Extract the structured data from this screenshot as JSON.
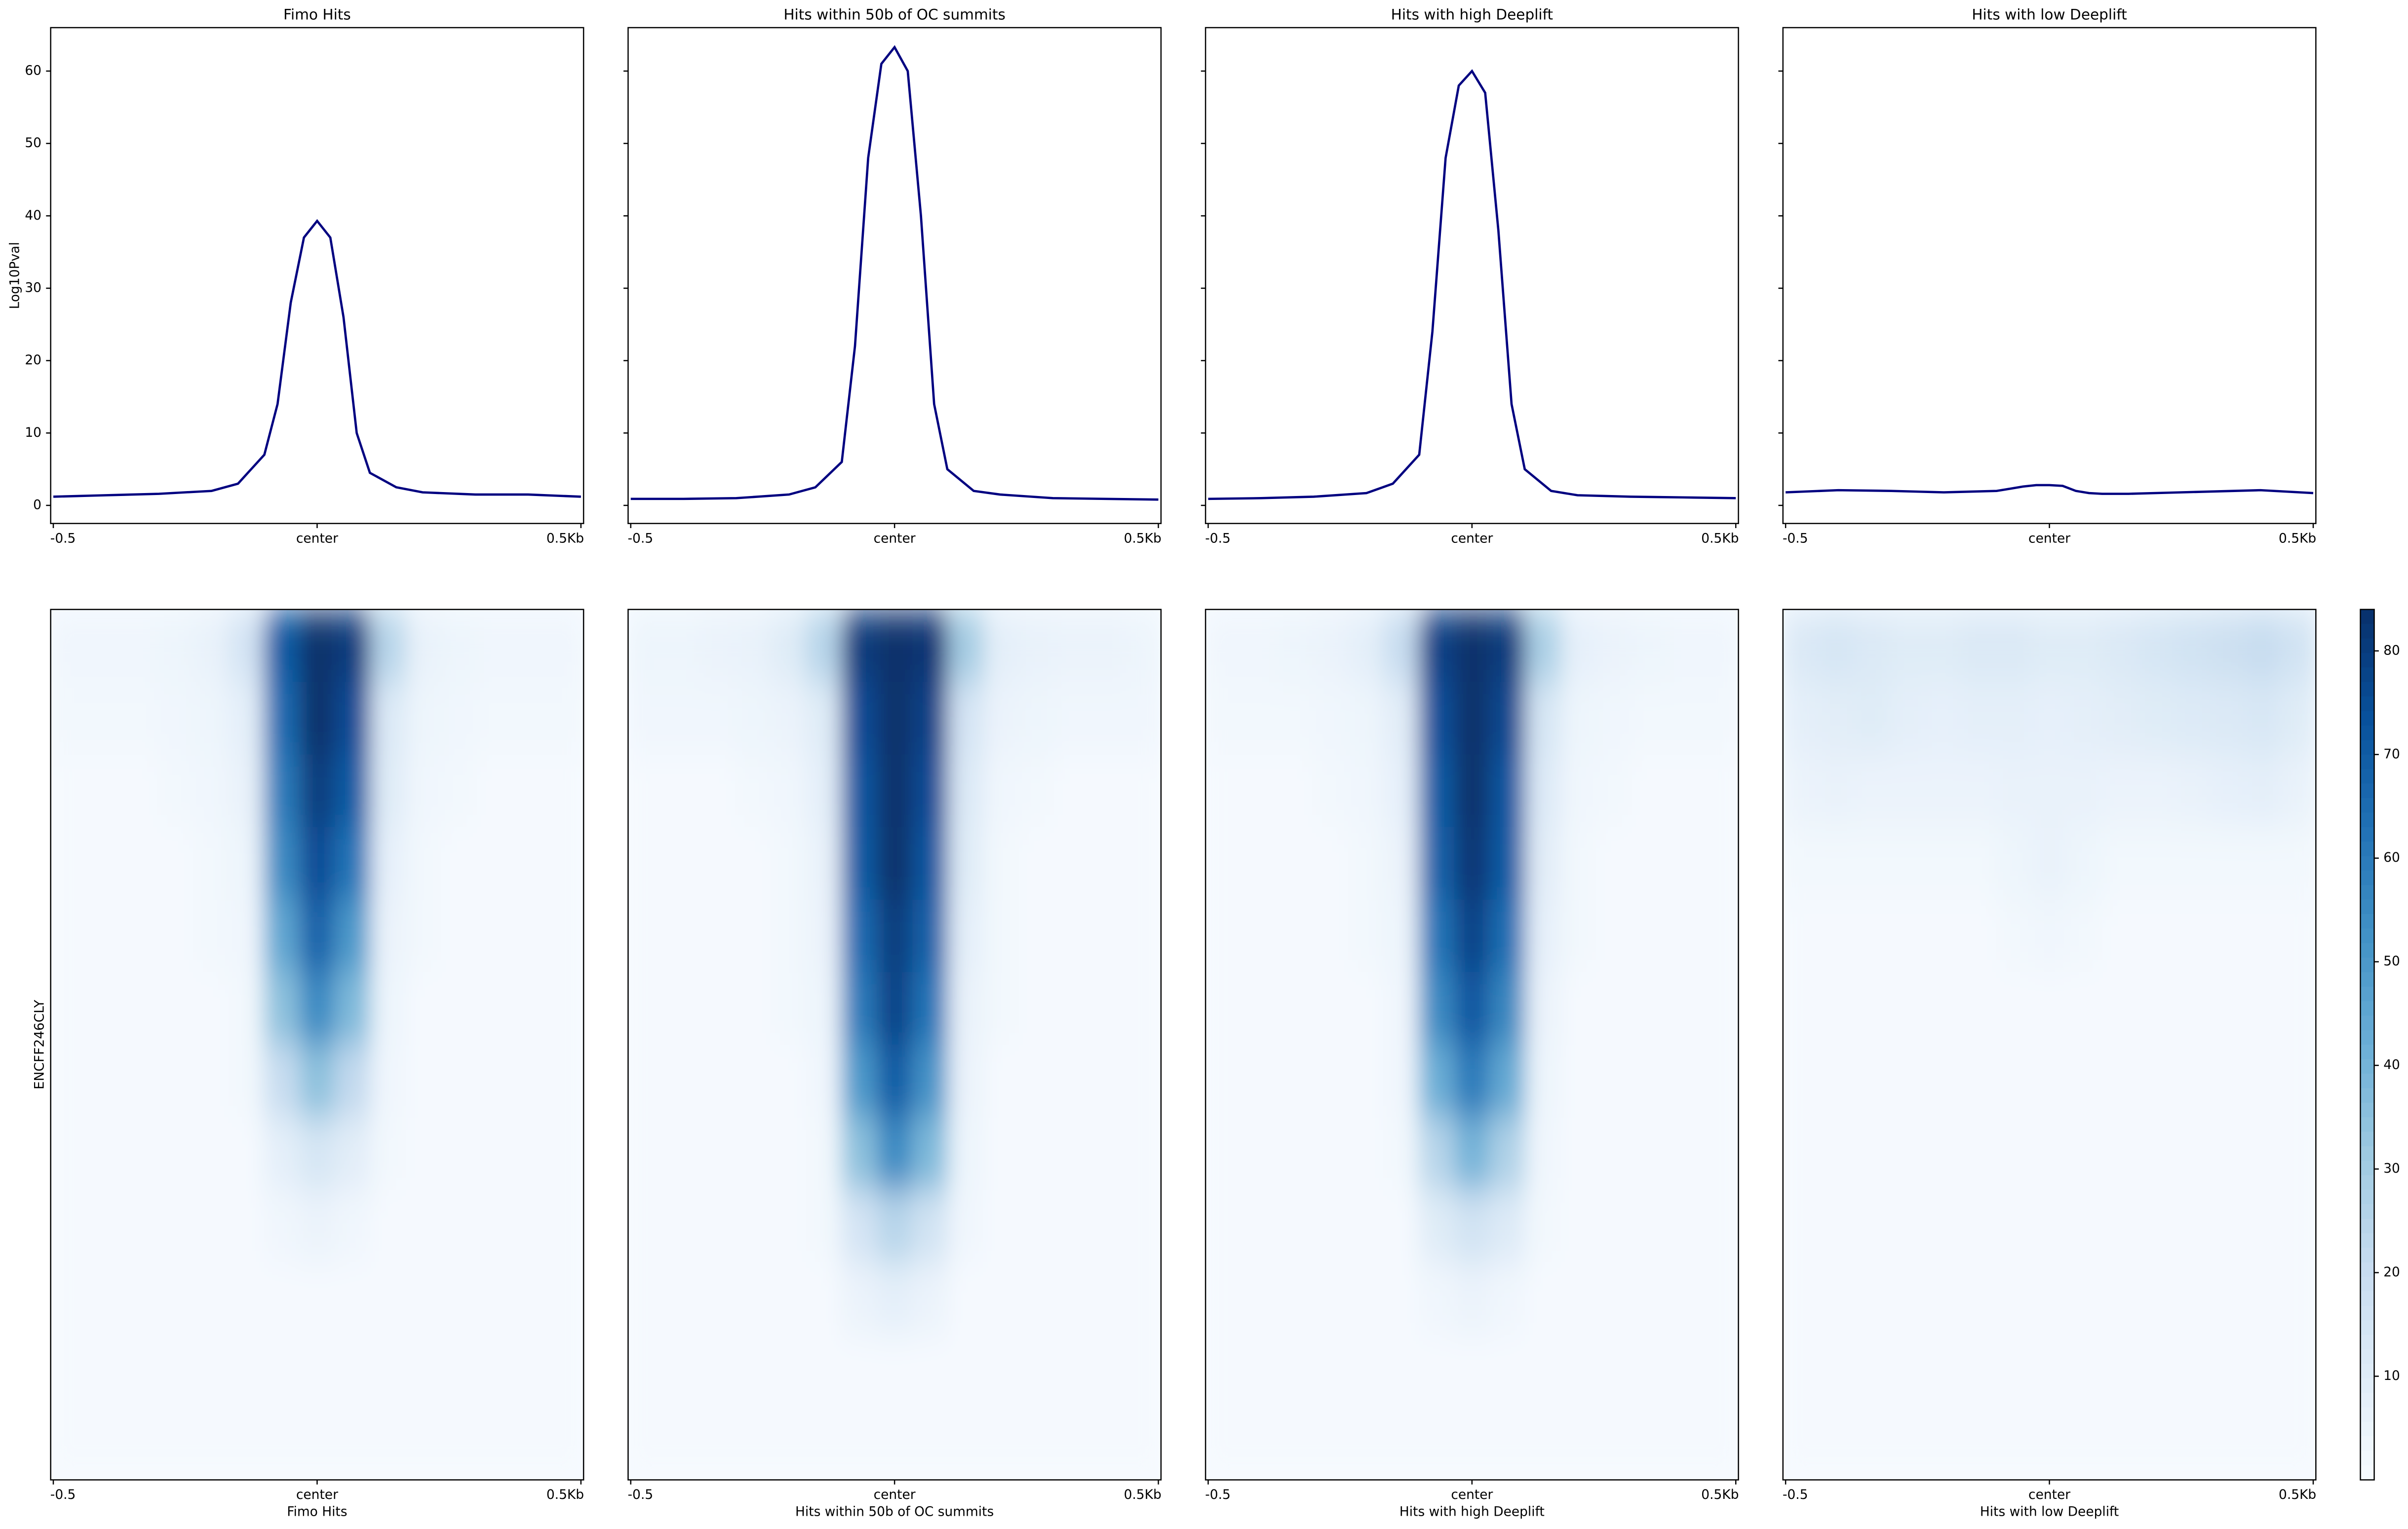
{
  "chart_data": [
    {
      "type": "line",
      "title": "Fimo Hits",
      "ylabel": "Log10Pval",
      "color": "#000080",
      "x": [
        -500,
        -400,
        -300,
        -200,
        -150,
        -100,
        -75,
        -50,
        -25,
        0,
        25,
        50,
        75,
        100,
        150,
        200,
        300,
        400,
        500
      ],
      "values": [
        1.2,
        1.4,
        1.6,
        2.0,
        3.0,
        7,
        14,
        28,
        37,
        39.3,
        37,
        26,
        10,
        4.5,
        2.5,
        1.8,
        1.5,
        1.5,
        1.2
      ],
      "xlim": [
        -505,
        505
      ],
      "xticks": [
        {
          "value": -500,
          "label": "-0.5"
        },
        {
          "value": 0,
          "label": "center"
        },
        {
          "value": 500,
          "label": "0.5Kb"
        }
      ],
      "ylim": [
        -2.5,
        66
      ],
      "yticks": [
        0,
        10,
        20,
        30,
        40,
        50,
        60
      ],
      "ytick_labels": true
    },
    {
      "type": "line",
      "title": "Hits within 50b of OC summits",
      "color": "#000080",
      "x": [
        -500,
        -400,
        -300,
        -200,
        -150,
        -100,
        -75,
        -50,
        -25,
        0,
        25,
        50,
        75,
        100,
        150,
        200,
        300,
        400,
        500
      ],
      "values": [
        0.9,
        0.9,
        1.0,
        1.5,
        2.5,
        6,
        22,
        48,
        61,
        63.3,
        60,
        40,
        14,
        5,
        2.0,
        1.5,
        1.0,
        0.9,
        0.8
      ],
      "xlim": [
        -505,
        505
      ],
      "xticks": [
        {
          "value": -500,
          "label": "-0.5"
        },
        {
          "value": 0,
          "label": "center"
        },
        {
          "value": 500,
          "label": "0.5Kb"
        }
      ],
      "ylim": [
        -2.5,
        66
      ],
      "yticks": [
        0,
        10,
        20,
        30,
        40,
        50,
        60
      ],
      "ytick_labels": false
    },
    {
      "type": "line",
      "title": "Hits with high Deeplift",
      "color": "#000080",
      "x": [
        -500,
        -400,
        -300,
        -200,
        -150,
        -100,
        -75,
        -50,
        -25,
        0,
        25,
        50,
        75,
        100,
        150,
        200,
        300,
        400,
        500
      ],
      "values": [
        0.9,
        1.0,
        1.2,
        1.7,
        3.0,
        7,
        24,
        48,
        58,
        60,
        57,
        38,
        14,
        5,
        2.0,
        1.4,
        1.2,
        1.1,
        1.0
      ],
      "xlim": [
        -505,
        505
      ],
      "xticks": [
        {
          "value": -500,
          "label": "-0.5"
        },
        {
          "value": 0,
          "label": "center"
        },
        {
          "value": 500,
          "label": "0.5Kb"
        }
      ],
      "ylim": [
        -2.5,
        66
      ],
      "yticks": [
        0,
        10,
        20,
        30,
        40,
        50,
        60
      ],
      "ytick_labels": false
    },
    {
      "type": "line",
      "title": "Hits with low Deeplift",
      "color": "#000080",
      "x": [
        -500,
        -400,
        -300,
        -200,
        -150,
        -100,
        -75,
        -50,
        -25,
        0,
        25,
        50,
        75,
        100,
        150,
        200,
        300,
        400,
        500
      ],
      "values": [
        1.8,
        2.1,
        2.0,
        1.8,
        1.9,
        2.0,
        2.3,
        2.6,
        2.8,
        2.8,
        2.7,
        2.0,
        1.7,
        1.6,
        1.6,
        1.7,
        1.9,
        2.1,
        1.7
      ],
      "xlim": [
        -505,
        505
      ],
      "xticks": [
        {
          "value": -500,
          "label": "-0.5"
        },
        {
          "value": 0,
          "label": "center"
        },
        {
          "value": 500,
          "label": "0.5Kb"
        }
      ],
      "ylim": [
        -2.5,
        66
      ],
      "yticks": [
        0,
        10,
        20,
        30,
        40,
        50,
        60
      ],
      "ytick_labels": false
    },
    {
      "type": "heatmap",
      "xlabel": "Fimo Hits",
      "ylabel": "ENCFF246CLY",
      "colormap": "Blues",
      "clim": [
        0,
        84
      ],
      "xlim": [
        -505,
        505
      ],
      "xticks": [
        {
          "value": -500,
          "label": "-0.5"
        },
        {
          "value": 0,
          "label": "center"
        },
        {
          "value": 500,
          "label": "0.5Kb"
        }
      ],
      "values": [
        [
          3,
          3,
          3,
          4,
          6,
          15,
          70,
          84,
          80,
          25,
          6,
          4,
          3,
          3,
          3
        ],
        [
          2,
          2,
          2,
          3,
          4,
          8,
          65,
          84,
          75,
          12,
          4,
          3,
          2,
          2,
          2
        ],
        [
          1,
          1,
          1,
          2,
          3,
          6,
          60,
          80,
          70,
          10,
          3,
          2,
          1,
          1,
          1
        ],
        [
          1,
          1,
          1,
          1,
          2,
          4,
          55,
          75,
          62,
          7,
          2,
          1,
          1,
          1,
          1
        ],
        [
          1,
          1,
          1,
          1,
          2,
          3,
          45,
          68,
          50,
          5,
          2,
          1,
          1,
          1,
          1
        ],
        [
          1,
          1,
          1,
          1,
          1,
          2,
          35,
          55,
          38,
          4,
          1,
          1,
          1,
          1,
          1
        ],
        [
          1,
          1,
          1,
          1,
          1,
          2,
          20,
          35,
          22,
          3,
          1,
          1,
          1,
          1,
          1
        ],
        [
          1,
          1,
          1,
          1,
          1,
          1,
          8,
          14,
          9,
          2,
          1,
          1,
          1,
          1,
          1
        ],
        [
          1,
          1,
          1,
          1,
          1,
          1,
          3,
          5,
          3,
          1,
          1,
          1,
          1,
          1,
          1
        ],
        [
          1,
          1,
          1,
          1,
          1,
          1,
          1,
          1,
          1,
          1,
          1,
          1,
          1,
          1,
          1
        ],
        [
          1,
          1,
          1,
          1,
          1,
          1,
          1,
          1,
          1,
          1,
          1,
          1,
          1,
          1,
          1
        ],
        [
          1,
          1,
          1,
          1,
          1,
          1,
          1,
          1,
          1,
          1,
          1,
          1,
          1,
          1,
          1
        ]
      ]
    },
    {
      "type": "heatmap",
      "xlabel": "Hits within 50b of OC summits",
      "colormap": "Blues",
      "clim": [
        0,
        84
      ],
      "xlim": [
        -505,
        505
      ],
      "xticks": [
        {
          "value": -500,
          "label": "-0.5"
        },
        {
          "value": 0,
          "label": "center"
        },
        {
          "value": 500,
          "label": "0.5Kb"
        }
      ],
      "values": [
        [
          4,
          4,
          5,
          6,
          10,
          25,
          80,
          84,
          82,
          30,
          8,
          6,
          5,
          5,
          4
        ],
        [
          3,
          3,
          3,
          4,
          5,
          10,
          75,
          84,
          78,
          15,
          5,
          4,
          3,
          3,
          3
        ],
        [
          1,
          1,
          1,
          2,
          3,
          8,
          72,
          84,
          75,
          12,
          3,
          2,
          1,
          1,
          1
        ],
        [
          1,
          1,
          1,
          1,
          2,
          6,
          70,
          84,
          72,
          10,
          2,
          1,
          1,
          1,
          1
        ],
        [
          1,
          1,
          1,
          1,
          2,
          5,
          65,
          80,
          68,
          8,
          2,
          1,
          1,
          1,
          1
        ],
        [
          1,
          1,
          1,
          1,
          2,
          4,
          60,
          78,
          62,
          6,
          2,
          1,
          1,
          1,
          1
        ],
        [
          1,
          1,
          1,
          1,
          1,
          3,
          50,
          70,
          52,
          5,
          1,
          1,
          1,
          1,
          1
        ],
        [
          1,
          1,
          1,
          1,
          1,
          2,
          35,
          55,
          38,
          4,
          1,
          1,
          1,
          1,
          1
        ],
        [
          1,
          1,
          1,
          1,
          1,
          2,
          15,
          25,
          16,
          3,
          1,
          1,
          1,
          1,
          1
        ],
        [
          1,
          1,
          1,
          1,
          1,
          1,
          5,
          8,
          5,
          1,
          1,
          1,
          1,
          1,
          1
        ],
        [
          1,
          1,
          1,
          1,
          1,
          1,
          1,
          1,
          1,
          1,
          1,
          1,
          1,
          1,
          1
        ],
        [
          1,
          1,
          1,
          1,
          1,
          1,
          1,
          1,
          1,
          1,
          1,
          1,
          1,
          1,
          1
        ]
      ]
    },
    {
      "type": "heatmap",
      "xlabel": "Hits with high Deeplift",
      "colormap": "Blues",
      "clim": [
        0,
        84
      ],
      "xlim": [
        -505,
        505
      ],
      "xticks": [
        {
          "value": -500,
          "label": "-0.5"
        },
        {
          "value": 0,
          "label": "center"
        },
        {
          "value": 500,
          "label": "0.5Kb"
        }
      ],
      "values": [
        [
          3,
          3,
          4,
          5,
          8,
          20,
          78,
          84,
          80,
          28,
          7,
          5,
          4,
          3,
          3
        ],
        [
          2,
          2,
          2,
          3,
          4,
          9,
          74,
          84,
          76,
          14,
          4,
          3,
          2,
          2,
          2
        ],
        [
          1,
          1,
          1,
          2,
          3,
          7,
          70,
          84,
          72,
          11,
          3,
          2,
          1,
          1,
          1
        ],
        [
          1,
          1,
          1,
          1,
          2,
          5,
          68,
          82,
          70,
          9,
          2,
          1,
          1,
          1,
          1
        ],
        [
          1,
          1,
          1,
          1,
          2,
          4,
          62,
          78,
          64,
          7,
          2,
          1,
          1,
          1,
          1
        ],
        [
          1,
          1,
          1,
          1,
          1,
          3,
          55,
          72,
          56,
          5,
          1,
          1,
          1,
          1,
          1
        ],
        [
          1,
          1,
          1,
          1,
          1,
          3,
          42,
          60,
          44,
          4,
          1,
          1,
          1,
          1,
          1
        ],
        [
          1,
          1,
          1,
          1,
          1,
          2,
          25,
          40,
          27,
          3,
          1,
          1,
          1,
          1,
          1
        ],
        [
          1,
          1,
          1,
          1,
          1,
          1,
          10,
          16,
          11,
          2,
          1,
          1,
          1,
          1,
          1
        ],
        [
          1,
          1,
          1,
          1,
          1,
          1,
          3,
          5,
          3,
          1,
          1,
          1,
          1,
          1,
          1
        ],
        [
          1,
          1,
          1,
          1,
          1,
          1,
          1,
          1,
          1,
          1,
          1,
          1,
          1,
          1,
          1
        ],
        [
          1,
          1,
          1,
          1,
          1,
          1,
          1,
          1,
          1,
          1,
          1,
          1,
          1,
          1,
          1
        ]
      ]
    },
    {
      "type": "heatmap",
      "xlabel": "Hits with low Deeplift",
      "colormap": "Blues",
      "clim": [
        0,
        84
      ],
      "xlim": [
        -505,
        505
      ],
      "xticks": [
        {
          "value": -500,
          "label": "-0.5"
        },
        {
          "value": 0,
          "label": "center"
        },
        {
          "value": 500,
          "label": "0.5Kb"
        }
      ],
      "colorbar_ticks": [
        10,
        20,
        30,
        40,
        50,
        60,
        70,
        80
      ],
      "values": [
        [
          12,
          14,
          12,
          10,
          10,
          12,
          12,
          10,
          10,
          12,
          14,
          16,
          18,
          20,
          16
        ],
        [
          8,
          9,
          10,
          8,
          7,
          8,
          8,
          7,
          8,
          9,
          10,
          11,
          12,
          13,
          10
        ],
        [
          5,
          6,
          5,
          5,
          5,
          5,
          6,
          6,
          6,
          5,
          5,
          6,
          7,
          8,
          6
        ],
        [
          2,
          2,
          2,
          2,
          2,
          2,
          4,
          6,
          4,
          2,
          2,
          2,
          2,
          2,
          2
        ],
        [
          1,
          1,
          1,
          1,
          1,
          1,
          2,
          3,
          2,
          1,
          1,
          1,
          1,
          1,
          1
        ],
        [
          1,
          1,
          1,
          1,
          1,
          1,
          1,
          1,
          1,
          1,
          1,
          1,
          1,
          1,
          1
        ],
        [
          1,
          1,
          1,
          1,
          1,
          1,
          1,
          1,
          1,
          1,
          1,
          1,
          1,
          1,
          1
        ],
        [
          1,
          1,
          1,
          1,
          1,
          1,
          1,
          1,
          1,
          1,
          1,
          1,
          1,
          1,
          1
        ],
        [
          1,
          1,
          1,
          1,
          1,
          1,
          1,
          1,
          1,
          1,
          1,
          1,
          1,
          1,
          1
        ],
        [
          1,
          1,
          1,
          1,
          1,
          1,
          1,
          1,
          1,
          1,
          1,
          1,
          1,
          1,
          1
        ],
        [
          1,
          1,
          1,
          1,
          1,
          1,
          1,
          1,
          1,
          1,
          1,
          1,
          1,
          1,
          1
        ],
        [
          1,
          1,
          1,
          1,
          1,
          1,
          1,
          1,
          1,
          1,
          1,
          1,
          1,
          1,
          1
        ]
      ]
    }
  ]
}
